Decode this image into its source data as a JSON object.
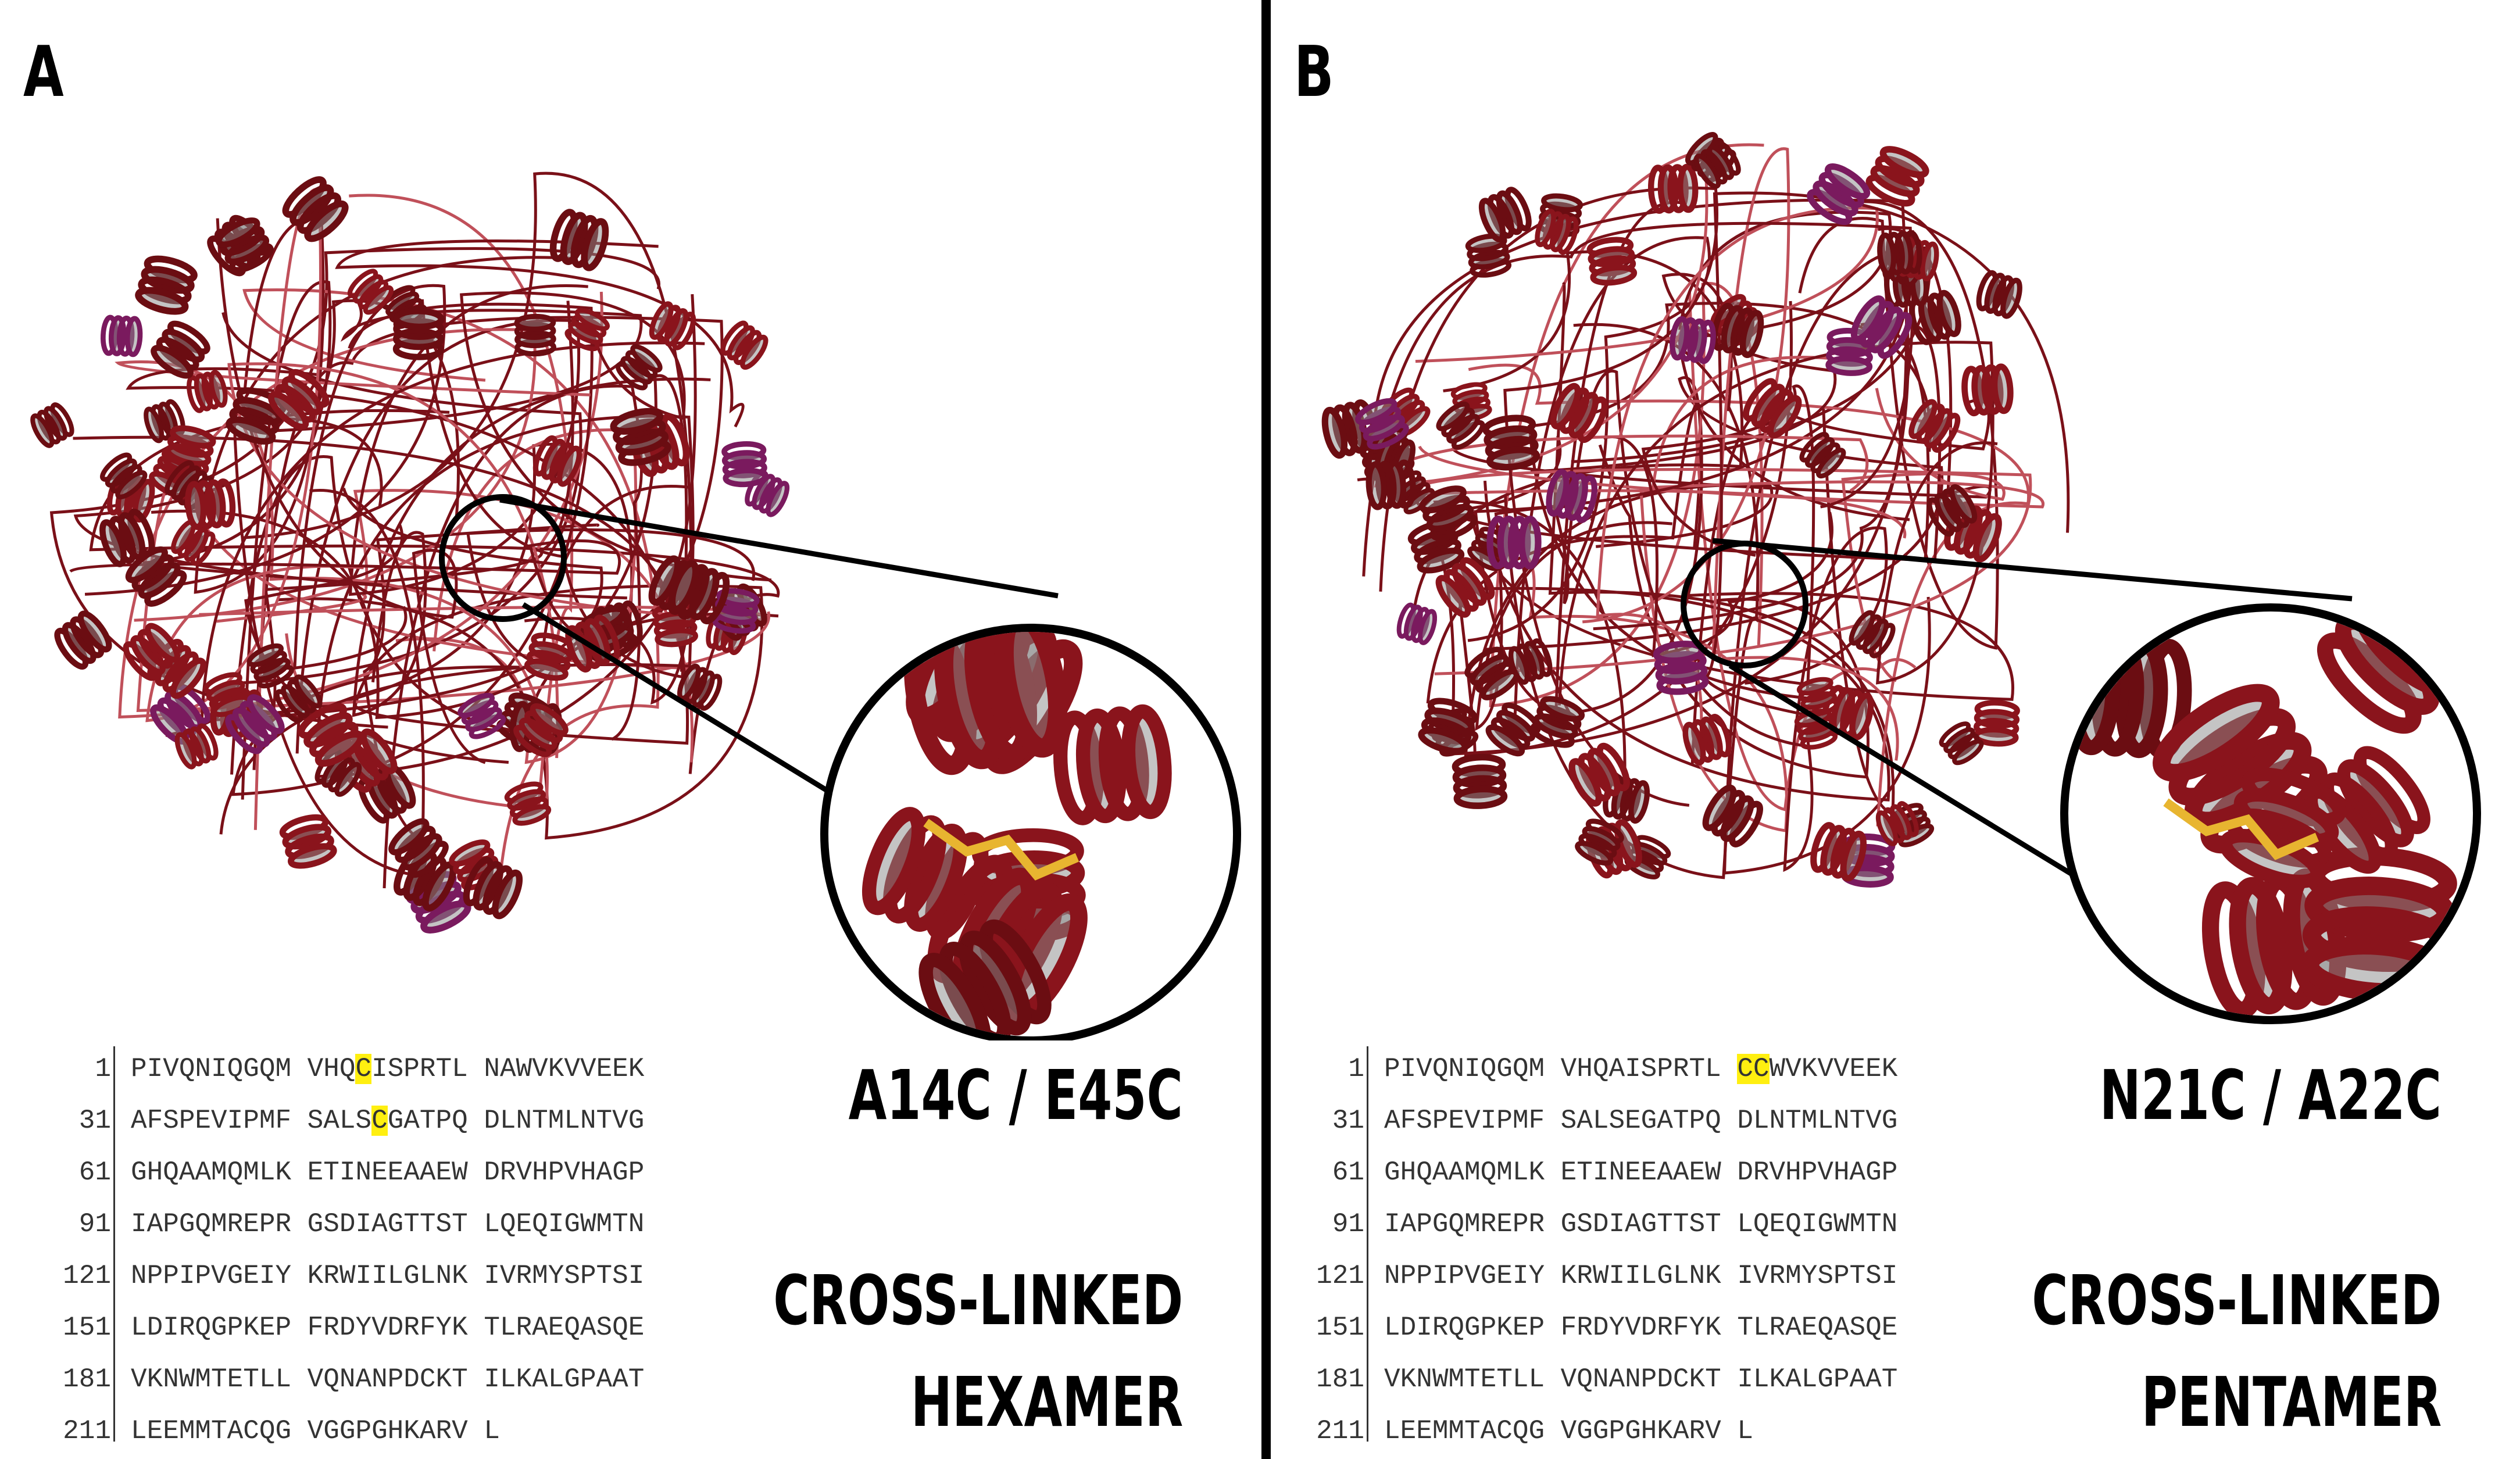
{
  "panel_a": {
    "letter": "A",
    "mutation": "A14C / E45C",
    "label_line1": "CROSS-LINKED",
    "label_line2": "HEXAMER",
    "sequence": [
      {
        "num": "1",
        "groups": [
          "PIVQNIQGQM",
          "VHQ",
          "C",
          "ISPRTL",
          "NAWVKVVEEK"
        ]
      },
      {
        "num": "31",
        "groups": [
          "AFSPEVIPMF",
          "SALS",
          "C",
          "GATPQ",
          "DLNTMLNTVG"
        ]
      },
      {
        "num": "61",
        "groups": [
          "GHQAAMQMLK",
          "ETINEEAAEW",
          "DRVHPVHAGP"
        ]
      },
      {
        "num": "91",
        "groups": [
          "IAPGQMREPR",
          "GSDIAGTTST",
          "LQEQIGWMTN"
        ]
      },
      {
        "num": "121",
        "groups": [
          "NPPIPVGEIY",
          "KRWIILGLNK",
          "IVRMYSPTSI"
        ]
      },
      {
        "num": "151",
        "groups": [
          "LDIRQGPKEP",
          "FRDYVDRFYK",
          "TLRAEQASQE"
        ]
      },
      {
        "num": "181",
        "groups": [
          "VKNWMTETLL",
          "VQNANPDCKT",
          "ILKALGPAAT"
        ]
      },
      {
        "num": "211",
        "groups": [
          "LEEMMTACQG",
          "VGGPGHKARV",
          "L"
        ]
      }
    ]
  },
  "panel_b": {
    "letter": "B",
    "mutation": "N21C / A22C",
    "label_line1": "CROSS-LINKED",
    "label_line2": "PENTAMER",
    "sequence": [
      {
        "num": "1",
        "groups": [
          "PIVQNIQGQM",
          "VHQAISPRTL",
          "CC",
          "WVKVVEEK"
        ]
      },
      {
        "num": "31",
        "groups": [
          "AFSPEVIPMF",
          "SALSEGATPQ",
          "DLNTMLNTVG"
        ]
      },
      {
        "num": "61",
        "groups": [
          "GHQAAMQMLK",
          "ETINEEAAEW",
          "DRVHPVHAGP"
        ]
      },
      {
        "num": "91",
        "groups": [
          "IAPGQMREPR",
          "GSDIAGTTST",
          "LQEQIGWMTN"
        ]
      },
      {
        "num": "121",
        "groups": [
          "NPPIPVGEIY",
          "KRWIILGLNK",
          "IVRMYSPTSI"
        ]
      },
      {
        "num": "151",
        "groups": [
          "LDIRQGPKEP",
          "FRDYVDRFYK",
          "TLRAEQASQE"
        ]
      },
      {
        "num": "181",
        "groups": [
          "VKNWMTETLL",
          "VQNANPDCKT",
          "ILKALGPAAT"
        ]
      },
      {
        "num": "211",
        "groups": [
          "LEEMMTACQG",
          "VGGPGHKARV",
          "L"
        ]
      }
    ]
  },
  "colors": {
    "helix": "#6b0d12",
    "helix_light": "#9b1b22",
    "sheet": "#7a1a5e",
    "highlight": "#ffef10",
    "sulfur": "#e8b530"
  }
}
